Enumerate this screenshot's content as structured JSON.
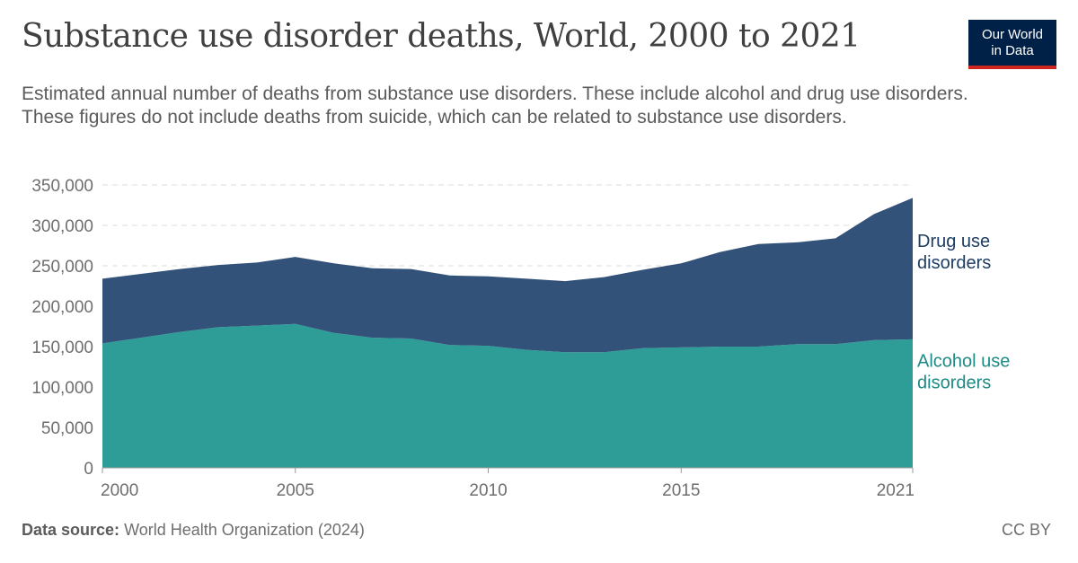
{
  "header": {
    "title": "Substance use disorder deaths, World, 2000 to 2021",
    "subtitle": "Estimated annual number of deaths from substance use disorders. These include alcohol and drug use disorders. These figures do not include deaths from suicide, which can be related to substance use disorders."
  },
  "logo": {
    "line1": "Our World",
    "line2": "in Data",
    "bg_color": "#002147",
    "accent_color": "#ce261e"
  },
  "footer": {
    "source_label": "Data source:",
    "source_text": "World Health Organization (2024)",
    "license": "CC BY"
  },
  "chart_data": {
    "type": "area",
    "stacked": true,
    "x": [
      2000,
      2001,
      2002,
      2003,
      2004,
      2005,
      2006,
      2007,
      2008,
      2009,
      2010,
      2011,
      2012,
      2013,
      2014,
      2015,
      2016,
      2017,
      2018,
      2019,
      2020,
      2021
    ],
    "series": [
      {
        "name": "Alcohol use disorders",
        "color": "#2e9c97",
        "values": [
          154000,
          161000,
          168000,
          174000,
          176000,
          178000,
          167000,
          161000,
          160000,
          152000,
          151000,
          146000,
          143000,
          143000,
          148000,
          149000,
          150000,
          150000,
          153000,
          153000,
          158000,
          159000
        ]
      },
      {
        "name": "Drug use disorders",
        "color": "#33527a",
        "values": [
          80000,
          79000,
          78000,
          77000,
          78000,
          83000,
          86000,
          86000,
          86000,
          86000,
          86000,
          88000,
          88000,
          93000,
          97000,
          104000,
          117000,
          127000,
          126000,
          131000,
          156000,
          175000
        ]
      }
    ],
    "series_label_lines": [
      {
        "line1": "Drug use",
        "line2": "disorders",
        "color": "#1d3d63"
      },
      {
        "line1": "Alcohol use",
        "line2": "disorders",
        "color": "#1d8a84"
      }
    ],
    "ylim": [
      0,
      350000
    ],
    "yticks": [
      0,
      50000,
      100000,
      150000,
      200000,
      250000,
      300000,
      350000
    ],
    "ytick_labels": [
      "0",
      "50,000",
      "100,000",
      "150,000",
      "200,000",
      "250,000",
      "300,000",
      "350,000"
    ],
    "xticks": [
      2000,
      2005,
      2010,
      2015,
      2021
    ],
    "xtick_labels": [
      "2000",
      "2005",
      "2010",
      "2015",
      "2021"
    ],
    "xlim": [
      2000,
      2021
    ],
    "grid": "horizontal dashed",
    "legend": "right"
  }
}
